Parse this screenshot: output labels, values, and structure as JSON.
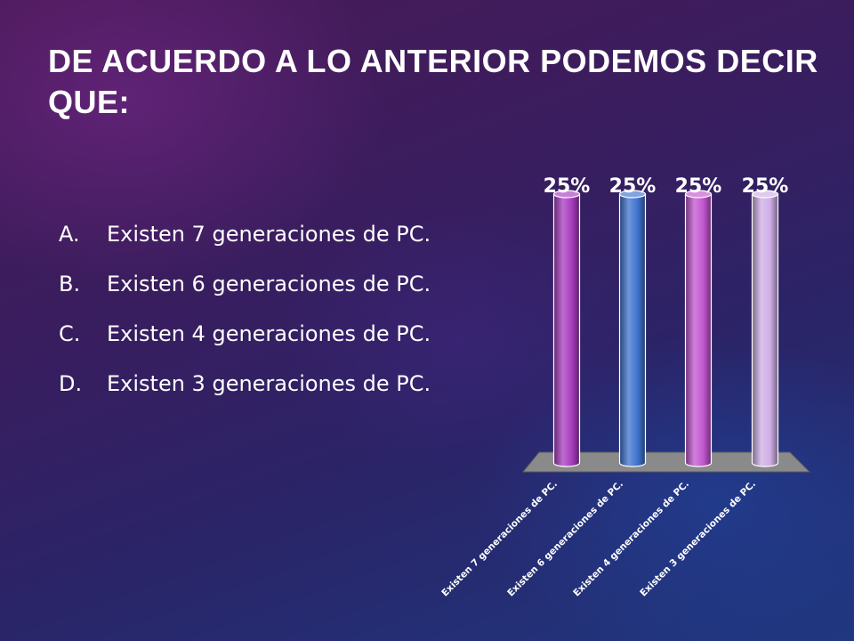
{
  "slide": {
    "title": "DE ACUERDO A LO ANTERIOR PODEMOS DECIR QUE:",
    "options": [
      {
        "letter": "A.",
        "text": "Existen 7 generaciones de PC."
      },
      {
        "letter": "B.",
        "text": "Existen 6 generaciones de PC."
      },
      {
        "letter": "C.",
        "text": "Existen 4 generaciones de PC."
      },
      {
        "letter": "D.",
        "text": "Existen 3 generaciones de PC."
      }
    ]
  },
  "chart_data": {
    "type": "bar",
    "categories": [
      "Existen 7 generaciones de PC.",
      "Existen 6 generaciones de PC.",
      "Existen 4 generaciones de PC.",
      "Existen 3 generaciones de PC."
    ],
    "values": [
      25,
      25,
      25,
      25
    ],
    "data_labels": [
      "25%",
      "25%",
      "25%",
      "25%"
    ],
    "colors": [
      "#a83cc0",
      "#3f73cf",
      "#c255cf",
      "#cfaee6"
    ],
    "ylim": [
      0,
      25
    ],
    "grid": false,
    "legend": "none",
    "style": "3d-cylinder"
  }
}
